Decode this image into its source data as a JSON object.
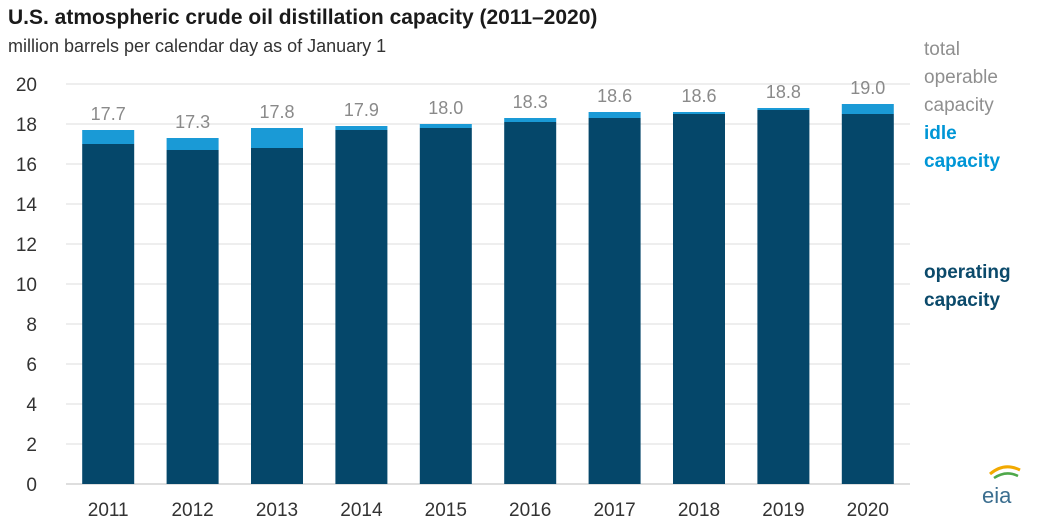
{
  "colors": {
    "operating": "#05476a",
    "idle": "#1a9ad6",
    "grid": "#dcdcdc",
    "total_label": "#8a8a8a"
  },
  "chart_data": {
    "type": "bar",
    "stacked": true,
    "title": "U.S. atmospheric crude oil distillation capacity (2011–2020)",
    "subtitle": "million barrels per calendar day as of January 1",
    "categories": [
      "2011",
      "2012",
      "2013",
      "2014",
      "2015",
      "2016",
      "2017",
      "2018",
      "2019",
      "2020"
    ],
    "series": [
      {
        "name": "operating capacity",
        "values": [
          17.0,
          16.7,
          16.8,
          17.7,
          17.8,
          18.1,
          18.3,
          18.5,
          18.7,
          18.5
        ]
      },
      {
        "name": "idle capacity",
        "values": [
          0.7,
          0.6,
          1.0,
          0.2,
          0.2,
          0.2,
          0.3,
          0.1,
          0.1,
          0.5
        ]
      }
    ],
    "totals": [
      17.7,
      17.3,
      17.8,
      17.9,
      18.0,
      18.3,
      18.6,
      18.6,
      18.8,
      19.0
    ],
    "total_labels": [
      "17.7",
      "17.3",
      "17.8",
      "17.9",
      "18.0",
      "18.3",
      "18.6",
      "18.6",
      "18.8",
      "19.0"
    ],
    "ylim": [
      0,
      20
    ],
    "yticks": [
      0,
      2,
      4,
      6,
      8,
      10,
      12,
      14,
      16,
      18,
      20
    ],
    "grid": true,
    "legend": {
      "total": [
        "total",
        "operable",
        "capacity"
      ],
      "idle": [
        "idle",
        "capacity"
      ],
      "operating": [
        "operating",
        "capacity"
      ],
      "placement": "right"
    }
  },
  "logo": {
    "text": "eia",
    "icon": "eia-logo-icon"
  }
}
